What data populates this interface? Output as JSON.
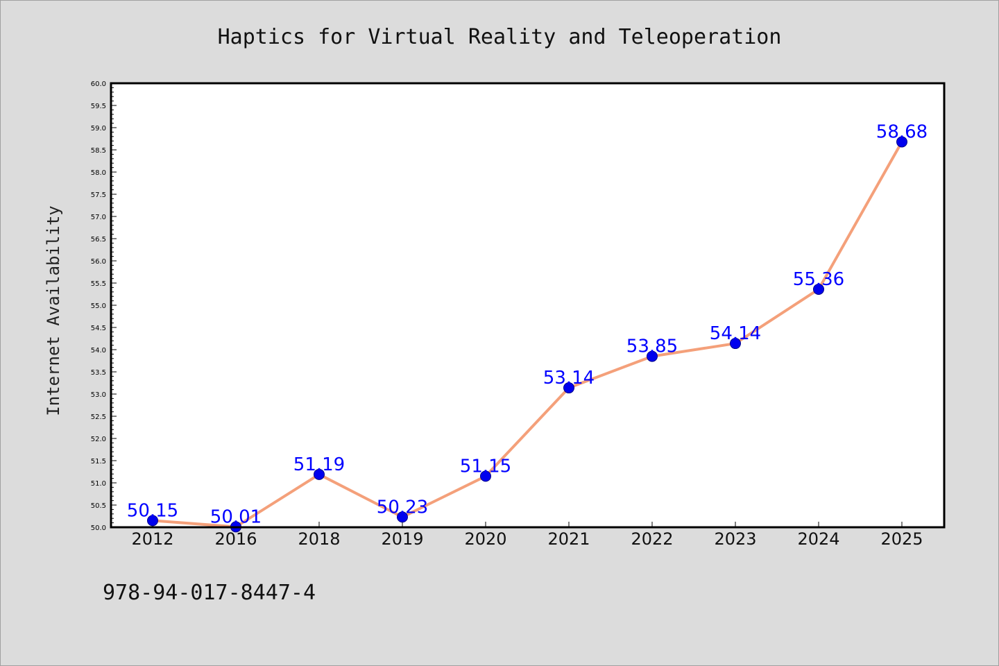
{
  "chart_data": {
    "type": "line",
    "title": "Haptics for Virtual Reality and Teleoperation",
    "xlabel": "",
    "ylabel": "Internet Availability",
    "categories": [
      "2012",
      "2016",
      "2018",
      "2019",
      "2020",
      "2021",
      "2022",
      "2023",
      "2024",
      "2025"
    ],
    "series": [
      {
        "values": [
          50.15,
          50.01,
          51.19,
          50.23,
          51.15,
          53.14,
          53.85,
          54.14,
          55.36,
          58.68
        ],
        "labels": [
          "50.15",
          "50.01",
          "51.19",
          "50.23",
          "51.15",
          "53.14",
          "53.85",
          "54.14",
          "55.36",
          "58.68"
        ]
      }
    ],
    "ylim": [
      50.0,
      60.0
    ],
    "yticks": [
      "50.0",
      "50.5",
      "51.0",
      "51.5",
      "52.0",
      "52.5",
      "53.0",
      "53.5",
      "54.0",
      "54.5",
      "55.0",
      "55.5",
      "56.0",
      "56.5",
      "57.0",
      "57.5",
      "58.0",
      "58.5",
      "59.0",
      "59.5",
      "60.0"
    ],
    "grid": false,
    "line_color": "#f4a07a",
    "marker_color": "#0000ee",
    "label_color": "#0000ff",
    "annotation": "978-94-017-8447-4"
  }
}
